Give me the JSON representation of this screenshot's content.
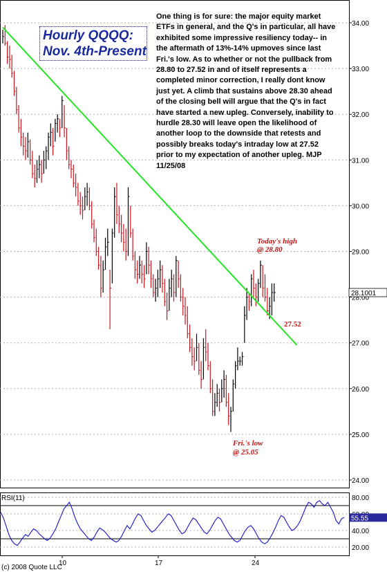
{
  "chart_data": [
    {
      "type": "bar",
      "subtype": "hlc-bars",
      "title": "Hourly QQQQ:",
      "subtitle": "Nov. 4th-Present",
      "ylim": [
        23.5,
        34.3
      ],
      "y_ticks": [
        "24.00",
        "25.00",
        "26.00",
        "27.00",
        "28.00",
        "29.00",
        "30.00",
        "31.00",
        "32.00",
        "33.00",
        "34.00"
      ],
      "x_ticks": [
        "10",
        "17",
        "24"
      ],
      "last_price_label": "28.1001",
      "grid": true,
      "colors": {
        "bars": "#c8141e",
        "bars_up": "#000000",
        "trendline": "#22e622"
      },
      "trendline": {
        "from": {
          "bar": 0,
          "y": 33.9
        },
        "to": {
          "bar": 129,
          "y": 26.95
        }
      },
      "bars": [
        {
          "h": 33.85,
          "l": 33.55,
          "c": 33.7
        },
        {
          "h": 33.95,
          "l": 33.5,
          "c": 33.55
        },
        {
          "h": 33.6,
          "l": 33.1,
          "c": 33.25
        },
        {
          "h": 33.5,
          "l": 33.0,
          "c": 33.2
        },
        {
          "h": 33.3,
          "l": 32.8,
          "c": 32.9
        },
        {
          "h": 32.95,
          "l": 32.4,
          "c": 32.5
        },
        {
          "h": 32.6,
          "l": 32.0,
          "c": 32.1
        },
        {
          "h": 32.2,
          "l": 31.6,
          "c": 31.7
        },
        {
          "h": 31.9,
          "l": 31.3,
          "c": 31.5
        },
        {
          "h": 31.6,
          "l": 31.1,
          "c": 31.3
        },
        {
          "h": 31.5,
          "l": 31.0,
          "c": 31.2
        },
        {
          "h": 31.6,
          "l": 31.05,
          "c": 31.4
        },
        {
          "h": 31.45,
          "l": 30.9,
          "c": 31.0
        },
        {
          "h": 31.2,
          "l": 30.6,
          "c": 30.7
        },
        {
          "h": 30.9,
          "l": 30.4,
          "c": 30.6
        },
        {
          "h": 31.0,
          "l": 30.5,
          "c": 30.8
        },
        {
          "h": 31.1,
          "l": 30.6,
          "c": 30.9
        },
        {
          "h": 31.0,
          "l": 30.5,
          "c": 30.7
        },
        {
          "h": 31.2,
          "l": 30.7,
          "c": 31.0
        },
        {
          "h": 31.3,
          "l": 30.8,
          "c": 31.2
        },
        {
          "h": 31.6,
          "l": 31.0,
          "c": 31.5
        },
        {
          "h": 31.8,
          "l": 31.3,
          "c": 31.6
        },
        {
          "h": 31.7,
          "l": 31.1,
          "c": 31.3
        },
        {
          "h": 31.9,
          "l": 31.4,
          "c": 31.8
        },
        {
          "h": 32.0,
          "l": 31.6,
          "c": 31.9
        },
        {
          "h": 31.9,
          "l": 31.5,
          "c": 31.7
        },
        {
          "h": 32.4,
          "l": 31.7,
          "c": 32.3
        },
        {
          "h": 32.2,
          "l": 31.5,
          "c": 31.7
        },
        {
          "h": 31.7,
          "l": 31.0,
          "c": 31.2
        },
        {
          "h": 31.3,
          "l": 30.8,
          "c": 30.9
        },
        {
          "h": 31.0,
          "l": 30.6,
          "c": 30.8
        },
        {
          "h": 30.9,
          "l": 30.4,
          "c": 30.5
        },
        {
          "h": 30.7,
          "l": 30.2,
          "c": 30.4
        },
        {
          "h": 30.5,
          "l": 30.0,
          "c": 30.1
        },
        {
          "h": 30.3,
          "l": 29.8,
          "c": 30.0
        },
        {
          "h": 30.2,
          "l": 29.7,
          "c": 29.9
        },
        {
          "h": 30.4,
          "l": 29.9,
          "c": 30.2
        },
        {
          "h": 30.5,
          "l": 30.0,
          "c": 30.3
        },
        {
          "h": 30.4,
          "l": 29.9,
          "c": 30.0
        },
        {
          "h": 30.1,
          "l": 29.5,
          "c": 29.6
        },
        {
          "h": 29.7,
          "l": 29.2,
          "c": 29.3
        },
        {
          "h": 29.5,
          "l": 28.9,
          "c": 29.0
        },
        {
          "h": 29.1,
          "l": 28.6,
          "c": 28.7
        },
        {
          "h": 28.9,
          "l": 28.0,
          "c": 28.2
        },
        {
          "h": 28.8,
          "l": 28.1,
          "c": 28.6
        },
        {
          "h": 29.3,
          "l": 28.6,
          "c": 29.1
        },
        {
          "h": 29.5,
          "l": 28.9,
          "c": 29.2
        },
        {
          "h": 28.6,
          "l": 27.3,
          "c": 28.2
        },
        {
          "h": 29.5,
          "l": 28.3,
          "c": 29.4
        },
        {
          "h": 30.4,
          "l": 29.3,
          "c": 30.2
        },
        {
          "h": 30.5,
          "l": 29.6,
          "c": 29.8
        },
        {
          "h": 30.0,
          "l": 29.4,
          "c": 29.6
        },
        {
          "h": 29.8,
          "l": 29.2,
          "c": 29.4
        },
        {
          "h": 29.6,
          "l": 29.0,
          "c": 29.2
        },
        {
          "h": 29.5,
          "l": 28.8,
          "c": 29.0
        },
        {
          "h": 30.4,
          "l": 28.9,
          "c": 30.2
        },
        {
          "h": 30.0,
          "l": 29.3,
          "c": 29.4
        },
        {
          "h": 29.5,
          "l": 28.8,
          "c": 28.9
        },
        {
          "h": 29.0,
          "l": 28.4,
          "c": 28.6
        },
        {
          "h": 28.8,
          "l": 28.3,
          "c": 28.5
        },
        {
          "h": 28.9,
          "l": 28.4,
          "c": 28.7
        },
        {
          "h": 28.8,
          "l": 28.3,
          "c": 28.5
        },
        {
          "h": 28.7,
          "l": 28.2,
          "c": 28.4
        },
        {
          "h": 29.2,
          "l": 28.5,
          "c": 29.0
        },
        {
          "h": 29.1,
          "l": 28.5,
          "c": 28.7
        },
        {
          "h": 28.8,
          "l": 28.2,
          "c": 28.4
        },
        {
          "h": 28.5,
          "l": 28.0,
          "c": 28.1
        },
        {
          "h": 28.4,
          "l": 27.9,
          "c": 28.2
        },
        {
          "h": 28.6,
          "l": 28.0,
          "c": 28.4
        },
        {
          "h": 28.8,
          "l": 28.2,
          "c": 28.6
        },
        {
          "h": 28.7,
          "l": 28.1,
          "c": 28.3
        },
        {
          "h": 28.4,
          "l": 27.8,
          "c": 27.9
        },
        {
          "h": 28.1,
          "l": 27.5,
          "c": 27.7
        },
        {
          "h": 28.4,
          "l": 27.7,
          "c": 28.2
        },
        {
          "h": 28.6,
          "l": 28.0,
          "c": 28.4
        },
        {
          "h": 28.5,
          "l": 27.9,
          "c": 28.1
        },
        {
          "h": 28.9,
          "l": 28.0,
          "c": 28.8
        },
        {
          "h": 28.8,
          "l": 28.2,
          "c": 28.4
        },
        {
          "h": 28.5,
          "l": 27.9,
          "c": 28.0
        },
        {
          "h": 28.2,
          "l": 27.6,
          "c": 27.8
        },
        {
          "h": 28.0,
          "l": 27.4,
          "c": 27.6
        },
        {
          "h": 27.8,
          "l": 27.1,
          "c": 27.2
        },
        {
          "h": 27.4,
          "l": 26.8,
          "c": 26.9
        },
        {
          "h": 27.1,
          "l": 26.5,
          "c": 26.7
        },
        {
          "h": 26.9,
          "l": 26.4,
          "c": 26.6
        },
        {
          "h": 27.2,
          "l": 26.6,
          "c": 26.9
        },
        {
          "h": 27.0,
          "l": 26.3,
          "c": 26.4
        },
        {
          "h": 26.6,
          "l": 26.0,
          "c": 26.2
        },
        {
          "h": 27.1,
          "l": 26.2,
          "c": 26.9
        },
        {
          "h": 27.3,
          "l": 26.6,
          "c": 26.8
        },
        {
          "h": 27.0,
          "l": 26.4,
          "c": 26.5
        },
        {
          "h": 26.6,
          "l": 25.9,
          "c": 26.0
        },
        {
          "h": 26.2,
          "l": 25.4,
          "c": 25.5
        },
        {
          "h": 25.9,
          "l": 25.4,
          "c": 25.7
        },
        {
          "h": 26.1,
          "l": 25.6,
          "c": 25.9
        },
        {
          "h": 26.0,
          "l": 25.5,
          "c": 25.7
        },
        {
          "h": 26.2,
          "l": 25.7,
          "c": 26.0
        },
        {
          "h": 26.4,
          "l": 25.8,
          "c": 26.2
        },
        {
          "h": 26.3,
          "l": 25.6,
          "c": 25.7
        },
        {
          "h": 25.9,
          "l": 25.2,
          "c": 25.4
        },
        {
          "h": 25.6,
          "l": 25.05,
          "c": 25.5
        },
        {
          "h": 26.2,
          "l": 25.5,
          "c": 26.1
        },
        {
          "h": 26.6,
          "l": 26.0,
          "c": 26.5
        },
        {
          "h": 26.9,
          "l": 26.4,
          "c": 26.6
        },
        {
          "h": 26.7,
          "l": 26.5,
          "c": 26.6
        },
        {
          "h": 26.8,
          "l": 26.5,
          "c": 26.7
        },
        {
          "h": 27.8,
          "l": 27.0,
          "c": 27.6
        },
        {
          "h": 28.2,
          "l": 27.5,
          "c": 28.0
        },
        {
          "h": 28.1,
          "l": 27.7,
          "c": 27.9
        },
        {
          "h": 28.5,
          "l": 27.8,
          "c": 28.4
        },
        {
          "h": 28.6,
          "l": 28.0,
          "c": 28.2
        },
        {
          "h": 28.3,
          "l": 27.8,
          "c": 28.0
        },
        {
          "h": 28.4,
          "l": 27.9,
          "c": 28.3
        },
        {
          "h": 28.8,
          "l": 28.2,
          "c": 28.7
        },
        {
          "h": 28.7,
          "l": 28.0,
          "c": 28.2
        },
        {
          "h": 28.5,
          "l": 27.9,
          "c": 28.0
        },
        {
          "h": 28.2,
          "l": 27.6,
          "c": 27.7
        },
        {
          "h": 28.0,
          "l": 27.52,
          "c": 27.8
        },
        {
          "h": 28.3,
          "l": 27.6,
          "c": 28.1
        },
        {
          "h": 28.3,
          "l": 27.9,
          "c": 28.1
        }
      ],
      "annotations": [
        {
          "text": "Today's high",
          "value": 28.8
        },
        {
          "text": "@ 28.80",
          "value": 28.8
        },
        {
          "text": "27.52",
          "value": 27.52
        },
        {
          "text": "Fri.'s low",
          "value": 25.05
        },
        {
          "text": "@ 25.05",
          "value": 25.05
        }
      ]
    },
    {
      "type": "line",
      "title": "RSI(11)",
      "ylim": [
        15,
        82
      ],
      "y_ticks": [
        "80.00",
        "60.00",
        "40.00",
        "20.00"
      ],
      "reference_lines": [
        70,
        30
      ],
      "last_value_label": "55.55",
      "colors": {
        "line": "#1414c8"
      },
      "values": [
        62,
        55,
        45,
        35,
        28,
        24,
        22,
        26,
        31,
        35,
        33,
        38,
        42,
        40,
        36,
        33,
        30,
        28,
        31,
        36,
        42,
        50,
        58,
        66,
        70,
        74,
        66,
        56,
        48,
        42,
        38,
        34,
        30,
        28,
        32,
        38,
        43,
        41,
        38,
        34,
        30,
        28,
        26,
        28,
        33,
        40,
        46,
        42,
        48,
        55,
        60,
        58,
        52,
        46,
        42,
        38,
        40,
        44,
        48,
        52,
        56,
        60,
        58,
        52,
        46,
        40,
        36,
        38,
        44,
        50,
        55,
        53,
        48,
        43,
        38,
        36,
        40,
        46,
        52,
        56,
        54,
        48,
        42,
        36,
        32,
        28,
        26,
        28,
        34,
        40,
        44,
        46,
        42,
        36,
        30,
        26,
        24,
        26,
        31,
        37,
        44,
        52,
        58,
        56,
        50,
        44,
        40,
        42,
        46,
        52,
        60,
        68,
        74,
        72,
        68,
        74,
        76,
        72,
        70,
        74,
        68,
        62,
        52,
        48,
        54,
        56
      ]
    }
  ],
  "title_box": {
    "line1": "Hourly QQQQ:",
    "line2": "Nov. 4th-Present"
  },
  "commentary": "One thing is for sure:  the major equity market ETFs in general, and the Q's in particular, all have exhibited some impressive resiliency today-- in the aftermath of 13%-14% upmoves since last Fri.'s low. As to whether or not the pullback from 28.80 to 27.52 in and of itself represents a completed minor correction, I really dont know just yet.  A climb that sustains above 28.30 ahead of the closing bell will argue that the Q's in fact have started a new upleg. Conversely, inability to hurdle 28.30 will leave open the likelihood of another loop to the downside that retests and possibly breaks today's intraday low at 27.52 prior to my expectation of another upleg. MJP 11/25/08",
  "annotations": {
    "today_high_1": "Today's high",
    "today_high_2": "@ 28.80",
    "low_label": "27.52",
    "fri_low_1": "Fri.'s low",
    "fri_low_2": "@ 25.05"
  },
  "copyright": "(c) 2008 Quote LLC"
}
